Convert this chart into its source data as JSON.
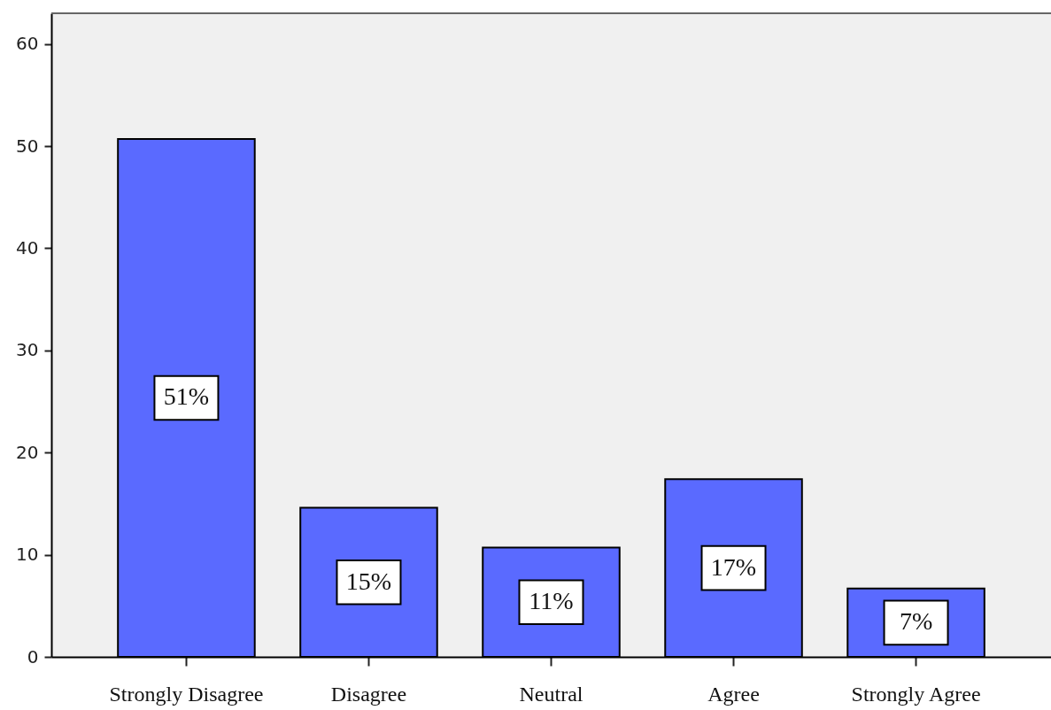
{
  "chart_data": {
    "type": "bar",
    "categories": [
      "Strongly Disagree",
      "Disagree",
      "Neutral",
      "Agree",
      "Strongly Agree"
    ],
    "values": [
      50.7,
      14.6,
      10.7,
      17.4,
      6.7
    ],
    "color": "#5a6aff",
    "value_labels": [
      "51%",
      "15%",
      "11%",
      "17%",
      "7%"
    ],
    "ylim": [
      0,
      63
    ],
    "yticks": [
      0,
      10,
      20,
      30,
      40,
      50,
      60
    ],
    "grid": false
  }
}
